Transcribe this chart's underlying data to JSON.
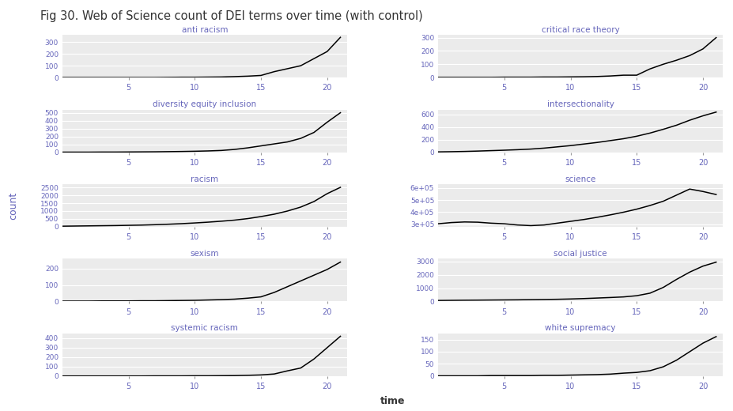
{
  "title": "Fig 30. Web of Science count of DEI terms over time (with control)",
  "title_color": "#333333",
  "title_fontsize": 10.5,
  "xlabel": "time",
  "ylabel": "count",
  "background_color": "#EBEBEB",
  "figure_background": "#FFFFFF",
  "line_color": "#000000",
  "subplot_title_color": "#6666BB",
  "tick_color": "#6666BB",
  "grid_color": "#FFFFFF",
  "x": [
    0,
    1,
    2,
    3,
    4,
    5,
    6,
    7,
    8,
    9,
    10,
    11,
    12,
    13,
    14,
    15,
    16,
    17,
    18,
    19,
    20,
    21
  ],
  "data": {
    "anti racism": [
      1,
      1,
      1,
      1,
      1,
      1,
      1,
      1,
      2,
      3,
      3,
      4,
      5,
      8,
      12,
      18,
      50,
      75,
      100,
      160,
      220,
      340
    ],
    "critical race theory": [
      2,
      2,
      2,
      2,
      2,
      3,
      3,
      3,
      4,
      4,
      5,
      6,
      8,
      12,
      18,
      18,
      65,
      100,
      130,
      165,
      215,
      300
    ],
    "diversity equity inclusion": [
      1,
      1,
      1,
      2,
      2,
      3,
      4,
      5,
      7,
      9,
      12,
      16,
      22,
      35,
      55,
      80,
      105,
      130,
      175,
      250,
      380,
      500
    ],
    "intersectionality": [
      5,
      8,
      12,
      18,
      25,
      32,
      40,
      50,
      65,
      85,
      105,
      130,
      155,
      185,
      215,
      255,
      305,
      365,
      430,
      510,
      580,
      640
    ],
    "racism": [
      40,
      50,
      60,
      70,
      80,
      95,
      110,
      135,
      165,
      200,
      245,
      295,
      355,
      425,
      520,
      650,
      800,
      1000,
      1250,
      1600,
      2100,
      2500
    ],
    "science": [
      305000,
      315000,
      320000,
      318000,
      310000,
      305000,
      295000,
      290000,
      295000,
      310000,
      325000,
      340000,
      358000,
      378000,
      400000,
      425000,
      455000,
      490000,
      540000,
      590000,
      570000,
      545000
    ],
    "sexism": [
      2,
      2,
      2,
      3,
      3,
      3,
      4,
      4,
      5,
      6,
      7,
      9,
      11,
      14,
      20,
      28,
      55,
      90,
      125,
      160,
      195,
      240
    ],
    "social justice": [
      75,
      85,
      95,
      100,
      108,
      115,
      122,
      135,
      148,
      162,
      185,
      215,
      255,
      295,
      340,
      430,
      620,
      1050,
      1650,
      2200,
      2650,
      2950
    ],
    "systemic racism": [
      1,
      1,
      1,
      1,
      1,
      1,
      1,
      2,
      2,
      2,
      3,
      3,
      4,
      5,
      8,
      12,
      22,
      55,
      85,
      180,
      300,
      420
    ],
    "white supremacy": [
      1,
      1,
      1,
      1,
      2,
      2,
      2,
      2,
      3,
      3,
      4,
      5,
      6,
      8,
      12,
      15,
      22,
      38,
      65,
      100,
      135,
      162
    ]
  },
  "yticks": {
    "anti racism": [
      [
        0,
        100,
        200,
        300
      ],
      [
        "0",
        "100",
        "200",
        "300"
      ]
    ],
    "critical race theory": [
      [
        0,
        100,
        200,
        300
      ],
      [
        "0",
        "100",
        "200",
        "300"
      ]
    ],
    "diversity equity inclusion": [
      [
        0,
        100,
        200,
        300,
        400,
        500
      ],
      [
        "0",
        "100",
        "200",
        "300",
        "400",
        "500"
      ]
    ],
    "intersectionality": [
      [
        0,
        200,
        400,
        600
      ],
      [
        "0",
        "200",
        "400",
        "600"
      ]
    ],
    "racism": [
      [
        0,
        500,
        1000,
        1500,
        2000,
        2500
      ],
      [
        "0",
        "500",
        "1000",
        "1500",
        "2000",
        "2500"
      ]
    ],
    "science": [
      [
        300000,
        400000,
        500000,
        600000
      ],
      [
        "3e+05",
        "4e+05",
        "5e+05",
        "6e+05"
      ]
    ],
    "sexism": [
      [
        0,
        100,
        200
      ],
      [
        "0",
        "100",
        "200"
      ]
    ],
    "social justice": [
      [
        0,
        1000,
        2000,
        3000
      ],
      [
        "0",
        "1000",
        "2000",
        "3000"
      ]
    ],
    "systemic racism": [
      [
        0,
        100,
        200,
        300,
        400
      ],
      [
        "0",
        "100",
        "200",
        "300",
        "400"
      ]
    ],
    "white supremacy": [
      [
        0,
        50,
        100,
        150
      ],
      [
        "0",
        "50",
        "100",
        "150"
      ]
    ]
  },
  "ylim": {
    "anti racism": [
      0,
      360
    ],
    "critical race theory": [
      0,
      320
    ],
    "diversity equity inclusion": [
      0,
      540
    ],
    "intersectionality": [
      0,
      680
    ],
    "racism": [
      0,
      2700
    ],
    "science": [
      280000,
      630000
    ],
    "sexism": [
      0,
      260
    ],
    "social justice": [
      0,
      3200
    ],
    "systemic racism": [
      0,
      450
    ],
    "white supremacy": [
      0,
      175
    ]
  },
  "xticks": [
    5,
    10,
    15,
    20
  ],
  "xtick_labels": [
    "5",
    "10",
    "15",
    "20"
  ],
  "xlim": [
    0,
    21.5
  ]
}
